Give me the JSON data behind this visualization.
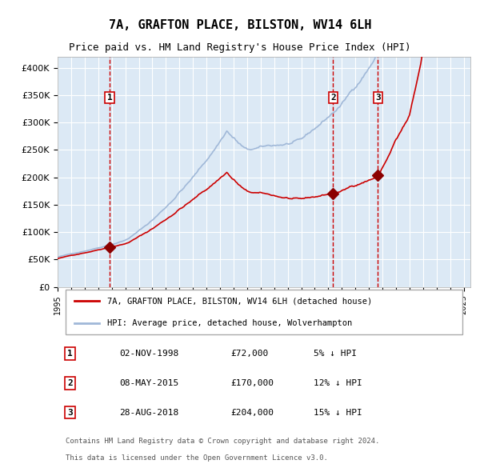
{
  "title": "7A, GRAFTON PLACE, BILSTON, WV14 6LH",
  "subtitle": "Price paid vs. HM Land Registry's House Price Index (HPI)",
  "ylabel_values": [
    "£0",
    "£50K",
    "£100K",
    "£150K",
    "£200K",
    "£250K",
    "£300K",
    "£350K",
    "£400K"
  ],
  "ytick_values": [
    0,
    50000,
    100000,
    150000,
    200000,
    250000,
    300000,
    350000,
    400000
  ],
  "ylim": [
    0,
    420000
  ],
  "xlim_start": 1995.0,
  "xlim_end": 2025.5,
  "background_color": "#dce9f5",
  "plot_bg_color": "#dce9f5",
  "grid_color": "#ffffff",
  "hpi_color": "#a0b8d8",
  "price_color": "#cc0000",
  "vline_color": "#cc0000",
  "transactions": [
    {
      "date_str": "02-NOV-1998",
      "price": 72000,
      "date_x": 1998.84,
      "label": "1"
    },
    {
      "date_str": "08-MAY-2015",
      "price": 170000,
      "date_x": 2015.35,
      "label": "2"
    },
    {
      "date_str": "28-AUG-2018",
      "price": 204000,
      "date_x": 2018.66,
      "label": "3"
    }
  ],
  "legend_price_label": "7A, GRAFTON PLACE, BILSTON, WV14 6LH (detached house)",
  "legend_hpi_label": "HPI: Average price, detached house, Wolverhampton",
  "footer_line1": "Contains HM Land Registry data © Crown copyright and database right 2024.",
  "footer_line2": "This data is licensed under the Open Government Licence v3.0.",
  "table_rows": [
    {
      "num": "1",
      "date": "02-NOV-1998",
      "price": "£72,000",
      "pct": "5% ↓ HPI"
    },
    {
      "num": "2",
      "date": "08-MAY-2015",
      "price": "£170,000",
      "pct": "12% ↓ HPI"
    },
    {
      "num": "3",
      "date": "28-AUG-2018",
      "price": "£204,000",
      "pct": "15% ↓ HPI"
    }
  ]
}
